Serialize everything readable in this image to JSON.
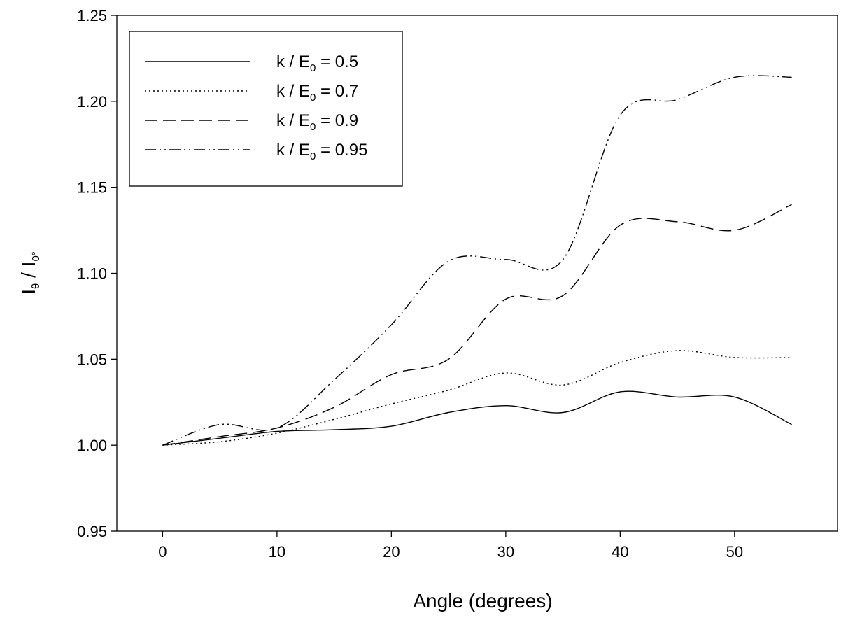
{
  "chart_data": {
    "type": "line",
    "xlabel": "Angle (degrees)",
    "ylabel": {
      "base": "I",
      "sub1": "θ",
      "sep": " / ",
      "base2": "I",
      "sub2": "0°"
    },
    "xlim": [
      -4,
      59
    ],
    "ylim": [
      0.95,
      1.25
    ],
    "xticks": [
      0,
      10,
      20,
      30,
      40,
      50
    ],
    "yticks": [
      "0.95",
      "1.00",
      "1.05",
      "1.10",
      "1.15",
      "1.20",
      "1.25"
    ],
    "grid": false,
    "legend_position": "top-left",
    "series": [
      {
        "legend": {
          "prefix": "k / E",
          "sub": "0",
          "suffix": " = 0.5"
        },
        "dash": "solid",
        "x": [
          0,
          5,
          10,
          15,
          20,
          25,
          30,
          35,
          40,
          45,
          50,
          55
        ],
        "y": [
          1.0,
          1.004,
          1.008,
          1.009,
          1.011,
          1.019,
          1.023,
          1.019,
          1.031,
          1.028,
          1.028,
          1.012
        ]
      },
      {
        "legend": {
          "prefix": "k / E",
          "sub": "0",
          "suffix": " = 0.7"
        },
        "dash": "dotted",
        "x": [
          0,
          5,
          10,
          15,
          20,
          25,
          30,
          35,
          40,
          45,
          50,
          55
        ],
        "y": [
          1.0,
          1.002,
          1.007,
          1.015,
          1.024,
          1.032,
          1.042,
          1.035,
          1.048,
          1.055,
          1.051,
          1.051
        ]
      },
      {
        "legend": {
          "prefix": "k / E",
          "sub": "0",
          "suffix": " = 0.9"
        },
        "dash": "dashed",
        "x": [
          0,
          5,
          10,
          15,
          20,
          25,
          30,
          35,
          40,
          45,
          50,
          55
        ],
        "y": [
          1.0,
          1.005,
          1.01,
          1.022,
          1.041,
          1.05,
          1.085,
          1.087,
          1.128,
          1.13,
          1.125,
          1.14
        ]
      },
      {
        "legend": {
          "prefix": "k / E",
          "sub": "0",
          "suffix": " = 0.95"
        },
        "dash": "dash-dot-dot",
        "x": [
          0,
          5,
          10,
          15,
          20,
          25,
          30,
          35,
          40,
          45,
          50,
          55
        ],
        "y": [
          1.0,
          1.012,
          1.01,
          1.038,
          1.07,
          1.107,
          1.108,
          1.108,
          1.192,
          1.201,
          1.214,
          1.214
        ]
      }
    ]
  }
}
